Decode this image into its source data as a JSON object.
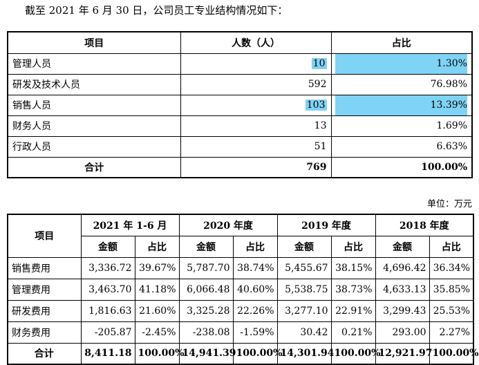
{
  "intro": "截至 2021 年 6 月 30 日，公司员工专业结构情况如下：",
  "staff_table": {
    "headers": [
      "项目",
      "人数（人）",
      "占比"
    ],
    "rows": [
      {
        "name": "管理人员",
        "count": "10",
        "ratio": "1.30%",
        "highlight": true
      },
      {
        "name": "研发及技术人员",
        "count": "592",
        "ratio": "76.98%",
        "highlight": false
      },
      {
        "name": "销售人员",
        "count": "103",
        "ratio": "13.39%",
        "highlight": true
      },
      {
        "name": "财务人员",
        "count": "13",
        "ratio": "1.69%",
        "highlight": false
      },
      {
        "name": "行政人员",
        "count": "51",
        "ratio": "6.63%",
        "highlight": false
      }
    ],
    "total": {
      "name": "合计",
      "count": "769",
      "ratio": "100.00%"
    },
    "highlight_color": "#7fd3f5"
  },
  "unit_label": "单位：万元",
  "expense_table": {
    "item_header": "项目",
    "periods": [
      "2021 年 1-6 月",
      "2020 年度",
      "2019 年度",
      "2018 年度"
    ],
    "sub_headers": [
      "金额",
      "占比"
    ],
    "rows": [
      {
        "name": "销售费用",
        "values": [
          "3,336.72",
          "39.67%",
          "5,787.70",
          "38.74%",
          "5,455.67",
          "38.15%",
          "4,696.42",
          "36.34%"
        ]
      },
      {
        "name": "管理费用",
        "values": [
          "3,463.70",
          "41.18%",
          "6,066.48",
          "40.60%",
          "5,538.75",
          "38.73%",
          "4,633.13",
          "35.85%"
        ]
      },
      {
        "name": "研发费用",
        "values": [
          "1,816.63",
          "21.60%",
          "3,325.28",
          "22.26%",
          "3,277.10",
          "22.91%",
          "3,299.43",
          "25.53%"
        ]
      },
      {
        "name": "财务费用",
        "values": [
          "-205.87",
          "-2.45%",
          "-238.08",
          "-1.59%",
          "30.42",
          "0.21%",
          "293.00",
          "2.27%"
        ]
      }
    ],
    "total": {
      "name": "合计",
      "values": [
        "8,411.18",
        "100.00%",
        "14,941.39",
        "100.00%",
        "14,301.94",
        "100.00%",
        "12,921.97",
        "100.00%"
      ]
    }
  }
}
